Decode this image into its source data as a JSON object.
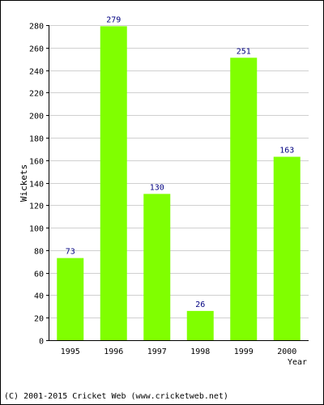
{
  "chart_data": {
    "type": "bar",
    "categories": [
      "1995",
      "1996",
      "1997",
      "1998",
      "1999",
      "2000"
    ],
    "values": [
      73,
      279,
      130,
      26,
      251,
      163
    ],
    "title": "",
    "xlabel": "Year",
    "ylabel": "Wickets",
    "ylim": [
      0,
      280
    ],
    "yticks": [
      0,
      20,
      40,
      60,
      80,
      100,
      120,
      140,
      160,
      180,
      200,
      220,
      240,
      260,
      280
    ],
    "grid": true,
    "legend": "none",
    "colors": {
      "bar": "#80ff00",
      "value_label": "#000080",
      "grid": "#d0d0d0",
      "axis": "#000000"
    }
  },
  "footer": {
    "copyright": "(C) 2001-2015 Cricket Web (www.cricketweb.net)"
  }
}
